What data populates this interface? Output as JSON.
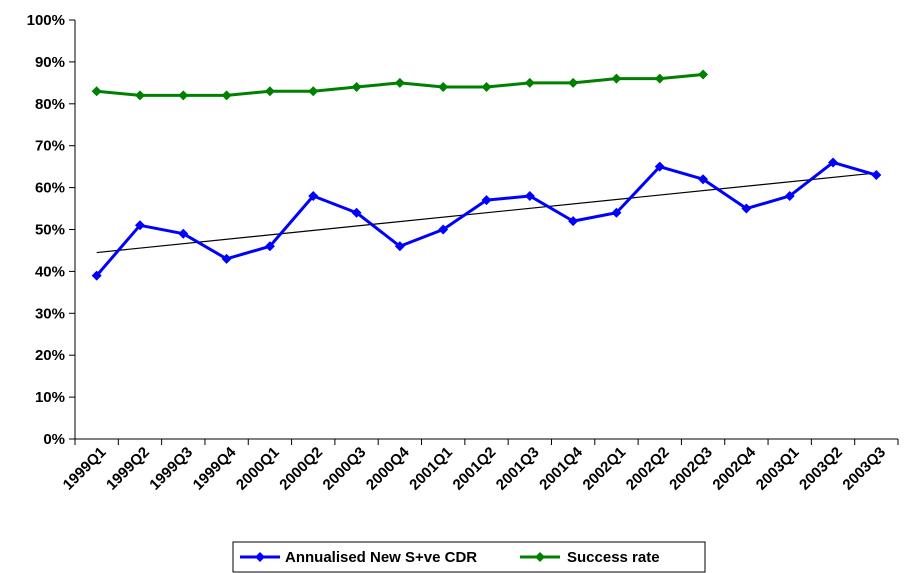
{
  "chart_data": {
    "type": "line",
    "categories": [
      "1999Q1",
      "1999Q2",
      "1999Q3",
      "1999Q4",
      "2000Q1",
      "2000Q2",
      "2000Q3",
      "2000Q4",
      "2001Q1",
      "2001Q2",
      "2001Q3",
      "2001Q4",
      "2002Q1",
      "2002Q2",
      "2002Q3",
      "2002Q4",
      "2003Q1",
      "2003Q2",
      "2003Q3"
    ],
    "series": [
      {
        "name": "Annualised New S+ve CDR",
        "color": "#0000ff",
        "marker": "diamond",
        "values": [
          39,
          51,
          49,
          43,
          46,
          58,
          54,
          46,
          50,
          57,
          58,
          52,
          54,
          65,
          62,
          55,
          58,
          66,
          63
        ]
      },
      {
        "name": "Success rate",
        "color": "#008000",
        "marker": "diamond",
        "values": [
          83,
          82,
          82,
          82,
          83,
          83,
          84,
          85,
          84,
          84,
          85,
          85,
          86,
          86,
          87,
          null,
          null,
          null,
          null
        ]
      }
    ],
    "trendline": {
      "series": "Annualised New S+ve CDR",
      "type": "linear",
      "color": "#000000",
      "start": 44.5,
      "end": 63.5
    },
    "y_ticks": [
      "0%",
      "10%",
      "20%",
      "30%",
      "40%",
      "50%",
      "60%",
      "70%",
      "80%",
      "90%",
      "100%"
    ],
    "ylim": [
      0,
      100
    ],
    "yunit": "%",
    "legend_position": "bottom",
    "grid": false,
    "title": "",
    "xlabel": "",
    "ylabel": ""
  }
}
